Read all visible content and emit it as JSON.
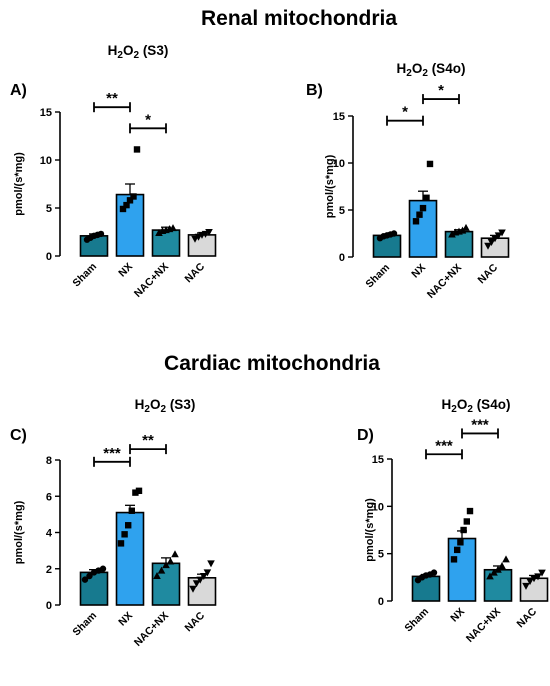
{
  "figure": {
    "renal_title": "Renal mitochondria",
    "cardiac_title": "Cardiac mitochondria"
  },
  "colors": {
    "Sham": "#177a8f",
    "NX": "#2fa2ee",
    "NAC+NX": "#1f8aa0",
    "NAC": "#d9d9d9"
  },
  "chart_data": [
    {
      "panel": "A)",
      "type": "bar",
      "title_main": "H",
      "title_sub1": "2",
      "title_mid": "O",
      "title_sub2": "2",
      "title_tail": " (S3)",
      "ylabel": "pmol/(s*mg)",
      "ylim": [
        0,
        15
      ],
      "yticks": [
        0,
        5,
        10,
        15
      ],
      "categories": [
        "Sham",
        "NX",
        "NAC+NX",
        "NAC"
      ],
      "values": [
        2.1,
        6.4,
        2.7,
        2.2
      ],
      "sem": [
        0.2,
        1.1,
        0.3,
        0.2
      ],
      "points": [
        [
          1.7,
          1.9,
          2.1,
          2.2,
          2.3
        ],
        [
          4.9,
          5.3,
          5.8,
          6.2,
          11.1
        ],
        [
          2.4,
          2.6,
          2.7,
          2.8,
          2.9
        ],
        [
          1.8,
          2.0,
          2.2,
          2.3,
          2.5
        ]
      ],
      "markers": [
        "circle",
        "square",
        "triangle",
        "triangle-down"
      ],
      "significance": [
        {
          "from": 0,
          "to": 1,
          "label": "**",
          "y": 15.5
        },
        {
          "from": 1,
          "to": 2,
          "label": "*",
          "y": 13.3
        }
      ]
    },
    {
      "panel": "B)",
      "type": "bar",
      "title_main": "H",
      "title_sub1": "2",
      "title_mid": "O",
      "title_sub2": "2",
      "title_tail": " (S4o)",
      "ylabel": "pmol/(s*mg)",
      "ylim": [
        0,
        15
      ],
      "yticks": [
        0,
        5,
        10,
        15
      ],
      "categories": [
        "Sham",
        "NX",
        "NAC+NX",
        "NAC"
      ],
      "values": [
        2.3,
        6.0,
        2.7,
        2.0
      ],
      "sem": [
        0.15,
        1.0,
        0.2,
        0.3
      ],
      "points": [
        [
          2.0,
          2.2,
          2.3,
          2.4,
          2.5
        ],
        [
          3.8,
          4.5,
          5.2,
          6.3,
          9.9
        ],
        [
          2.4,
          2.6,
          2.7,
          2.8,
          3.1
        ],
        [
          1.2,
          1.6,
          2.0,
          2.3,
          2.6
        ]
      ],
      "markers": [
        "circle",
        "square",
        "triangle",
        "triangle-down"
      ],
      "significance": [
        {
          "from": 0,
          "to": 1,
          "label": "*",
          "y": 14.5
        },
        {
          "from": 1,
          "to": 2,
          "label": "*",
          "y": 16.8
        }
      ]
    },
    {
      "panel": "C)",
      "type": "bar",
      "title_main": "H",
      "title_sub1": "2",
      "title_mid": "O",
      "title_sub2": "2",
      "title_tail": " (S3)",
      "ylabel": "pmol/(s*mg)",
      "ylim": [
        0,
        8
      ],
      "yticks": [
        0,
        2,
        4,
        6,
        8
      ],
      "categories": [
        "Sham",
        "NX",
        "NAC+NX",
        "NAC"
      ],
      "values": [
        1.8,
        5.1,
        2.3,
        1.5
      ],
      "sem": [
        0.15,
        0.4,
        0.3,
        0.2
      ],
      "points": [
        [
          1.4,
          1.6,
          1.8,
          1.9,
          2.0
        ],
        [
          3.4,
          3.9,
          4.4,
          5.2,
          6.2,
          6.3
        ],
        [
          1.6,
          1.9,
          2.2,
          2.4,
          2.8
        ],
        [
          0.9,
          1.2,
          1.4,
          1.6,
          1.8,
          2.3
        ]
      ],
      "markers": [
        "circle",
        "square",
        "triangle",
        "triangle-down"
      ],
      "significance": [
        {
          "from": 0,
          "to": 1,
          "label": "***",
          "y": 7.9
        },
        {
          "from": 1,
          "to": 2,
          "label": "**",
          "y": 8.6
        }
      ]
    },
    {
      "panel": "D)",
      "type": "bar",
      "title_main": "H",
      "title_sub1": "2",
      "title_mid": "O",
      "title_sub2": "2",
      "title_tail": " (S4o)",
      "ylabel": "pmol/(s*mg)",
      "ylim": [
        0,
        15
      ],
      "yticks": [
        0,
        5,
        10,
        15
      ],
      "categories": [
        "Sham",
        "NX",
        "NAC+NX",
        "NAC"
      ],
      "values": [
        2.6,
        6.6,
        3.3,
        2.4
      ],
      "sem": [
        0.2,
        0.8,
        0.4,
        0.3
      ],
      "points": [
        [
          2.2,
          2.5,
          2.7,
          2.8,
          3.0
        ],
        [
          4.4,
          5.4,
          6.2,
          7.5,
          8.4,
          9.5
        ],
        [
          2.6,
          3.0,
          3.3,
          3.7,
          4.4
        ],
        [
          1.6,
          2.1,
          2.4,
          2.6,
          3.0
        ]
      ],
      "markers": [
        "circle",
        "square",
        "triangle",
        "triangle-down"
      ],
      "significance": [
        {
          "from": 0,
          "to": 1,
          "label": "***",
          "y": 15.5
        },
        {
          "from": 1,
          "to": 2,
          "label": "***",
          "y": 17.7
        }
      ]
    }
  ]
}
